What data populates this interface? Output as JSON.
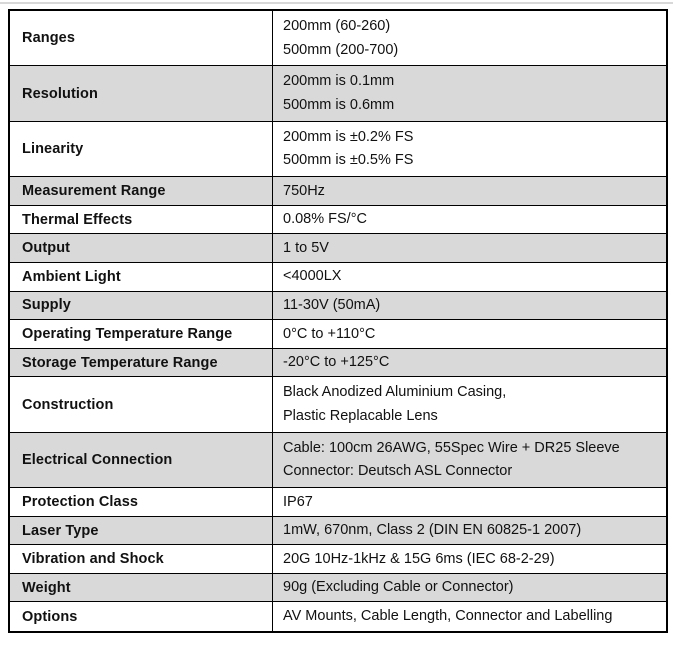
{
  "colors": {
    "row_shading": "#d9d9d9",
    "border": "#000000",
    "text": "#111111",
    "top_rule": "#d8d8d8"
  },
  "table": {
    "rows": [
      {
        "label": "Ranges",
        "values": [
          "200mm (60-260)",
          "500mm (200-700)"
        ],
        "shaded": false
      },
      {
        "label": "Resolution",
        "values": [
          "200mm is 0.1mm",
          "500mm is 0.6mm"
        ],
        "shaded": true
      },
      {
        "label": "Linearity",
        "values": [
          "200mm is ±0.2% FS",
          "500mm is ±0.5% FS"
        ],
        "shaded": false
      },
      {
        "label": "Measurement Range",
        "values": [
          "750Hz"
        ],
        "shaded": true
      },
      {
        "label": "Thermal Effects",
        "values": [
          "0.08% FS/°C"
        ],
        "shaded": false
      },
      {
        "label": "Output",
        "values": [
          "1 to 5V"
        ],
        "shaded": true
      },
      {
        "label": "Ambient Light",
        "values": [
          "<4000LX"
        ],
        "shaded": false
      },
      {
        "label": "Supply",
        "values": [
          "11-30V (50mA)"
        ],
        "shaded": true
      },
      {
        "label": "Operating Temperature Range",
        "values": [
          "0°C to +110°C"
        ],
        "shaded": false
      },
      {
        "label": "Storage Temperature Range",
        "values": [
          "-20°C to +125°C"
        ],
        "shaded": true
      },
      {
        "label": "Construction",
        "values": [
          "Black Anodized Aluminium Casing,",
          "Plastic Replacable Lens"
        ],
        "shaded": false
      },
      {
        "label": "Electrical Connection",
        "values": [
          "Cable: 100cm 26AWG, 55Spec Wire + DR25 Sleeve",
          "Connector: Deutsch ASL Connector"
        ],
        "shaded": true
      },
      {
        "label": "Protection Class",
        "values": [
          "IP67"
        ],
        "shaded": false
      },
      {
        "label": "Laser Type",
        "values": [
          "1mW, 670nm, Class 2 (DIN EN 60825-1 2007)"
        ],
        "shaded": true
      },
      {
        "label": "Vibration and Shock",
        "values": [
          "20G 10Hz-1kHz & 15G 6ms (IEC 68-2-29)"
        ],
        "shaded": false
      },
      {
        "label": "Weight",
        "values": [
          "90g (Excluding Cable or Connector)"
        ],
        "shaded": true
      },
      {
        "label": "Options",
        "values": [
          "AV Mounts, Cable Length, Connector and Labelling"
        ],
        "shaded": false
      }
    ]
  }
}
